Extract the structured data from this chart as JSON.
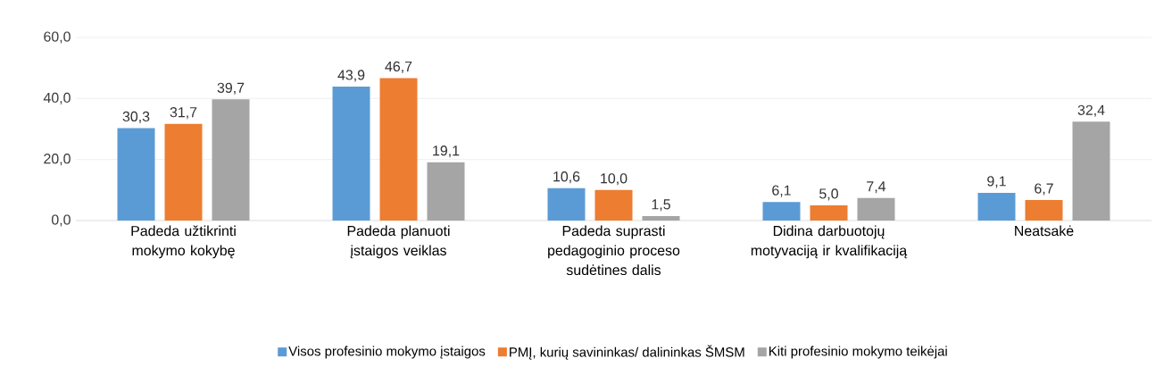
{
  "chart_data": {
    "type": "bar",
    "categories": [
      "Padeda užtikrinti mokymo kokybę",
      "Padeda planuoti įstaigos veiklas",
      "Padeda suprasti pedagoginio proceso sudėtines dalis",
      "Didina darbuotojų motyvaciją ir kvalifikaciją",
      "Neatsakė"
    ],
    "series": [
      {
        "name": "Visos profesinio mokymo įstaigos",
        "color": "#5b9bd5",
        "values": [
          30.3,
          43.9,
          10.6,
          6.1,
          9.1
        ],
        "value_labels": [
          "30,3",
          "43,9",
          "10,6",
          "6,1",
          "9,1"
        ]
      },
      {
        "name": "PMĮ, kurių savininkas/ dalininkas ŠMSM",
        "color": "#ed7d31",
        "values": [
          31.7,
          46.7,
          10.0,
          5.0,
          6.7
        ],
        "value_labels": [
          "31,7",
          "46,7",
          "10,0",
          "5,0",
          "6,7"
        ]
      },
      {
        "name": "Kiti profesinio mokymo teikėjai",
        "color": "#a5a5a5",
        "values": [
          39.7,
          19.1,
          1.5,
          7.4,
          32.4
        ],
        "value_labels": [
          "39,7",
          "19,1",
          "1,5",
          "7,4",
          "32,4"
        ]
      }
    ],
    "ylim": [
      0,
      60
    ],
    "yticks": [
      {
        "value": 0,
        "label": "0,0"
      },
      {
        "value": 20,
        "label": "20,0"
      },
      {
        "value": 40,
        "label": "40,0"
      },
      {
        "value": 60,
        "label": "60,0"
      }
    ],
    "grid": "y",
    "legend": "bottom"
  }
}
